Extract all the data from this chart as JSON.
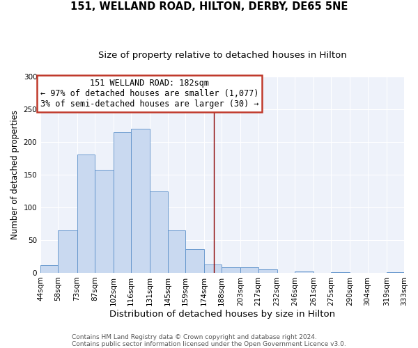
{
  "title": "151, WELLAND ROAD, HILTON, DERBY, DE65 5NE",
  "subtitle": "Size of property relative to detached houses in Hilton",
  "xlabel": "Distribution of detached houses by size in Hilton",
  "ylabel": "Number of detached properties",
  "bar_left_edges": [
    44,
    58,
    73,
    87,
    102,
    116,
    131,
    145,
    159,
    174,
    188,
    203,
    217,
    232,
    246,
    261,
    275,
    290,
    304,
    319
  ],
  "bar_widths": [
    14,
    15,
    14,
    15,
    14,
    15,
    14,
    14,
    15,
    14,
    15,
    14,
    15,
    14,
    15,
    14,
    15,
    14,
    15,
    14
  ],
  "bar_heights": [
    12,
    65,
    181,
    158,
    215,
    220,
    125,
    65,
    36,
    13,
    9,
    9,
    5,
    0,
    2,
    0,
    1,
    0,
    0,
    1
  ],
  "bar_face_color": "#c9d9f0",
  "bar_edge_color": "#5b8fc9",
  "tick_labels": [
    "44sqm",
    "58sqm",
    "73sqm",
    "87sqm",
    "102sqm",
    "116sqm",
    "131sqm",
    "145sqm",
    "159sqm",
    "174sqm",
    "188sqm",
    "203sqm",
    "217sqm",
    "232sqm",
    "246sqm",
    "261sqm",
    "275sqm",
    "290sqm",
    "304sqm",
    "319sqm",
    "333sqm"
  ],
  "vline_x": 182,
  "vline_color": "#8b0000",
  "annotation_title": "151 WELLAND ROAD: 182sqm",
  "annotation_line1": "← 97% of detached houses are smaller (1,077)",
  "annotation_line2": "3% of semi-detached houses are larger (30) →",
  "annotation_box_color": "#c0392b",
  "ylim": [
    0,
    300
  ],
  "yticks": [
    0,
    50,
    100,
    150,
    200,
    250,
    300
  ],
  "bg_color": "#eef2fa",
  "footer1": "Contains HM Land Registry data © Crown copyright and database right 2024.",
  "footer2": "Contains public sector information licensed under the Open Government Licence v3.0.",
  "title_fontsize": 10.5,
  "subtitle_fontsize": 9.5,
  "xlabel_fontsize": 9.5,
  "ylabel_fontsize": 8.5,
  "tick_fontsize": 7.5,
  "annotation_fontsize": 8.5,
  "footer_fontsize": 6.5
}
